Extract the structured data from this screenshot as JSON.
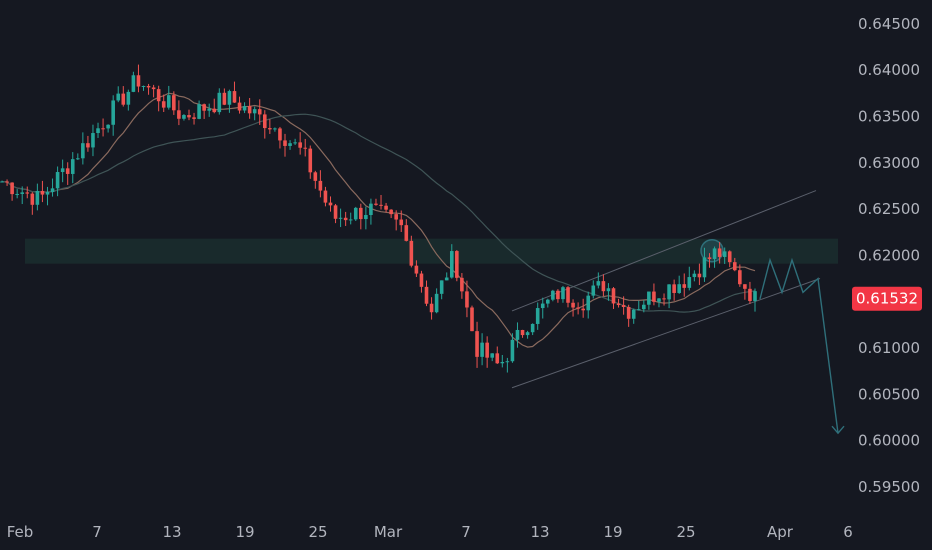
{
  "chart_data": {
    "type": "candlestick",
    "title": "",
    "y_axis": {
      "ticks": [
        "0.64500",
        "0.64000",
        "0.63500",
        "0.63000",
        "0.62500",
        "0.62000",
        "0.61000",
        "0.60500",
        "0.60000",
        "0.59500"
      ],
      "ylim": [
        0.5925,
        0.6465
      ],
      "current_price_label": "0.61532",
      "current_price": 0.61532
    },
    "x_axis": {
      "tick_labels": [
        "Feb",
        "7",
        "13",
        "19",
        "25",
        "Mar",
        "7",
        "13",
        "19",
        "25",
        "Apr",
        "6"
      ]
    },
    "colors": {
      "background": "#151821",
      "up": "#26a69a",
      "down": "#ef5350",
      "ema_fast": "#8a6a5e",
      "ema_slow": "#3f5456",
      "zone": "#1e3a36",
      "projection": "#2f6f7a",
      "channel": "#5a5f6b",
      "price_badge": "#f23645"
    },
    "resistance_zone": [
      0.6191,
      0.6218
    ],
    "series": [
      {
        "name": "",
        "kind": "trend",
        "points": [
          [
            0,
            0.628
          ],
          [
            0.05,
            0.626
          ],
          [
            0.12,
            0.633
          ],
          [
            0.18,
            0.639
          ],
          [
            0.24,
            0.635
          ],
          [
            0.3,
            0.637
          ],
          [
            0.36,
            0.634
          ],
          [
            0.4,
            0.631
          ],
          [
            0.44,
            0.624
          ],
          [
            0.49,
            0.625
          ],
          [
            0.53,
            0.623
          ],
          [
            0.57,
            0.614
          ],
          [
            0.6,
            0.62
          ],
          [
            0.63,
            0.61
          ],
          [
            0.66,
            0.608
          ],
          [
            0.7,
            0.613
          ],
          [
            0.74,
            0.616
          ],
          [
            0.77,
            0.615
          ],
          [
            0.8,
            0.617
          ],
          [
            0.83,
            0.614
          ],
          [
            0.87,
            0.616
          ],
          [
            0.91,
            0.6175
          ],
          [
            0.95,
            0.6205
          ],
          [
            1.0,
            0.6153
          ]
        ]
      }
    ],
    "projection_path": [
      0.6153,
      0.6195,
      0.616,
      0.6195,
      0.616,
      0.6175,
      0.6008
    ],
    "channel": {
      "lower": [
        0.6057,
        0.6175
      ],
      "upper": [
        0.614,
        0.627
      ]
    }
  }
}
